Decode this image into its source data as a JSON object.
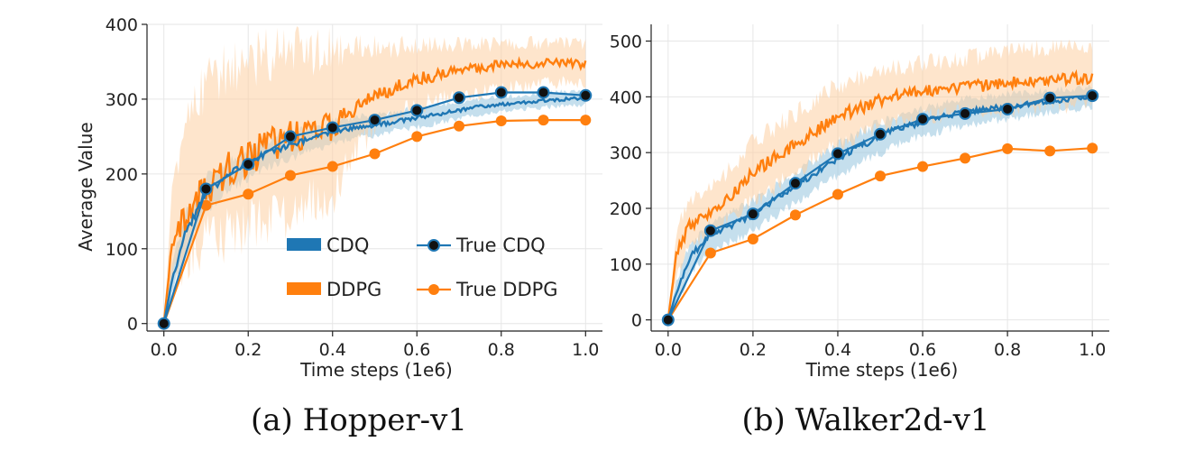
{
  "colors": {
    "cdq": "#1f77b4",
    "ddpg": "#ff7f0e",
    "cdq_band": "#9ecae1",
    "ddpg_band": "#fdd0a2",
    "marker_dark": "#111111"
  },
  "legend": {
    "entries": [
      "CDQ",
      "DDPG",
      "True CDQ",
      "True DDPG"
    ]
  },
  "chart_data": [
    {
      "type": "line",
      "caption": "(a) Hopper-v1",
      "xlabel": "Time steps (1e6)",
      "ylabel": "Average Value",
      "xlim": [
        -0.04,
        1.04
      ],
      "ylim": [
        -10,
        400
      ],
      "xticks": [
        0.0,
        0.2,
        0.4,
        0.6,
        0.8,
        1.0
      ],
      "xtick_labels": [
        "0.0",
        "0.2",
        "0.4",
        "0.6",
        "0.8",
        "1.0"
      ],
      "yticks": [
        0,
        100,
        200,
        300,
        400
      ],
      "ytick_labels": [
        "0",
        "100",
        "200",
        "300",
        "400"
      ],
      "grid": true,
      "legend_position": "lower-right",
      "series": [
        {
          "name": "CDQ",
          "style": "band",
          "x": [
            0.0,
            0.02,
            0.05,
            0.1,
            0.15,
            0.2,
            0.25,
            0.3,
            0.35,
            0.4,
            0.45,
            0.5,
            0.55,
            0.6,
            0.65,
            0.7,
            0.75,
            0.8,
            0.85,
            0.9,
            0.95,
            1.0
          ],
          "y": [
            0,
            60,
            120,
            175,
            198,
            215,
            230,
            238,
            248,
            255,
            262,
            265,
            270,
            275,
            280,
            285,
            290,
            293,
            295,
            298,
            300,
            302
          ],
          "lower": [
            0,
            40,
            95,
            150,
            175,
            195,
            210,
            220,
            232,
            240,
            248,
            252,
            258,
            263,
            268,
            274,
            280,
            284,
            286,
            289,
            291,
            293
          ],
          "upper": [
            0,
            80,
            145,
            195,
            215,
            232,
            246,
            255,
            263,
            270,
            276,
            279,
            283,
            288,
            292,
            296,
            300,
            303,
            305,
            308,
            310,
            312
          ]
        },
        {
          "name": "DDPG",
          "style": "band",
          "x": [
            0.0,
            0.02,
            0.05,
            0.1,
            0.15,
            0.2,
            0.25,
            0.3,
            0.35,
            0.4,
            0.45,
            0.5,
            0.55,
            0.6,
            0.65,
            0.7,
            0.75,
            0.8,
            0.85,
            0.9,
            0.95,
            1.0
          ],
          "y": [
            0,
            110,
            140,
            180,
            205,
            222,
            238,
            250,
            258,
            262,
            285,
            305,
            318,
            326,
            333,
            340,
            343,
            345,
            347,
            348,
            350,
            346
          ],
          "lower": [
            0,
            60,
            80,
            110,
            120,
            130,
            140,
            150,
            160,
            170,
            230,
            260,
            280,
            290,
            300,
            305,
            310,
            315,
            318,
            320,
            322,
            320
          ],
          "upper": [
            0,
            180,
            270,
            320,
            340,
            350,
            358,
            362,
            365,
            368,
            365,
            368,
            370,
            372,
            372,
            373,
            374,
            374,
            375,
            375,
            375,
            372
          ]
        },
        {
          "name": "True CDQ",
          "style": "markers",
          "x": [
            0.0,
            0.1,
            0.2,
            0.3,
            0.4,
            0.5,
            0.6,
            0.7,
            0.8,
            0.9,
            1.0
          ],
          "y": [
            0,
            180,
            213,
            250,
            262,
            272,
            285,
            302,
            309,
            309,
            305
          ]
        },
        {
          "name": "True DDPG",
          "style": "markers",
          "x": [
            0.0,
            0.1,
            0.2,
            0.3,
            0.4,
            0.5,
            0.6,
            0.7,
            0.8,
            0.9,
            1.0
          ],
          "y": [
            0,
            158,
            173,
            198,
            210,
            227,
            250,
            264,
            271,
            272,
            272
          ]
        }
      ]
    },
    {
      "type": "line",
      "caption": "(b) Walker2d-v1",
      "xlabel": "Time steps (1e6)",
      "ylabel": "",
      "xlim": [
        -0.04,
        1.04
      ],
      "ylim": [
        -20,
        530
      ],
      "xticks": [
        0.0,
        0.2,
        0.4,
        0.6,
        0.8,
        1.0
      ],
      "xtick_labels": [
        "0.0",
        "0.2",
        "0.4",
        "0.6",
        "0.8",
        "1.0"
      ],
      "yticks": [
        0,
        100,
        200,
        300,
        400,
        500
      ],
      "ytick_labels": [
        "0",
        "100",
        "200",
        "300",
        "400",
        "500"
      ],
      "grid": true,
      "series": [
        {
          "name": "CDQ",
          "style": "band",
          "x": [
            0.0,
            0.02,
            0.05,
            0.1,
            0.15,
            0.2,
            0.25,
            0.3,
            0.35,
            0.4,
            0.45,
            0.5,
            0.55,
            0.6,
            0.65,
            0.7,
            0.75,
            0.8,
            0.85,
            0.9,
            0.95,
            1.0
          ],
          "y": [
            0,
            50,
            110,
            155,
            170,
            190,
            215,
            240,
            265,
            290,
            310,
            330,
            345,
            355,
            365,
            372,
            378,
            382,
            388,
            392,
            396,
            400
          ],
          "lower": [
            0,
            30,
            80,
            125,
            140,
            160,
            185,
            210,
            235,
            260,
            280,
            300,
            318,
            330,
            340,
            348,
            355,
            360,
            366,
            372,
            377,
            382
          ],
          "upper": [
            0,
            70,
            135,
            175,
            192,
            212,
            238,
            262,
            290,
            315,
            335,
            355,
            368,
            378,
            388,
            395,
            400,
            404,
            408,
            412,
            415,
            418
          ]
        },
        {
          "name": "DDPG",
          "style": "band",
          "x": [
            0.0,
            0.02,
            0.05,
            0.1,
            0.15,
            0.2,
            0.25,
            0.3,
            0.35,
            0.4,
            0.45,
            0.5,
            0.55,
            0.6,
            0.65,
            0.7,
            0.75,
            0.8,
            0.85,
            0.9,
            0.95,
            1.0
          ],
          "y": [
            0,
            120,
            170,
            190,
            225,
            265,
            290,
            315,
            340,
            365,
            380,
            395,
            405,
            410,
            415,
            418,
            420,
            425,
            428,
            430,
            433,
            435
          ],
          "lower": [
            0,
            80,
            130,
            160,
            180,
            215,
            240,
            265,
            290,
            315,
            330,
            345,
            355,
            362,
            368,
            372,
            375,
            378,
            382,
            385,
            388,
            390
          ],
          "upper": [
            0,
            160,
            215,
            235,
            275,
            320,
            345,
            370,
            395,
            420,
            435,
            448,
            455,
            460,
            465,
            470,
            475,
            480,
            485,
            490,
            492,
            490
          ]
        },
        {
          "name": "True CDQ",
          "style": "markers",
          "x": [
            0.0,
            0.1,
            0.2,
            0.3,
            0.4,
            0.5,
            0.6,
            0.7,
            0.8,
            0.9,
            1.0
          ],
          "y": [
            0,
            160,
            190,
            245,
            298,
            333,
            360,
            370,
            378,
            398,
            402
          ]
        },
        {
          "name": "True DDPG",
          "style": "markers",
          "x": [
            0.0,
            0.1,
            0.2,
            0.3,
            0.4,
            0.5,
            0.6,
            0.7,
            0.8,
            0.9,
            1.0
          ],
          "y": [
            0,
            120,
            145,
            188,
            225,
            258,
            275,
            290,
            307,
            303,
            308
          ]
        }
      ]
    }
  ]
}
